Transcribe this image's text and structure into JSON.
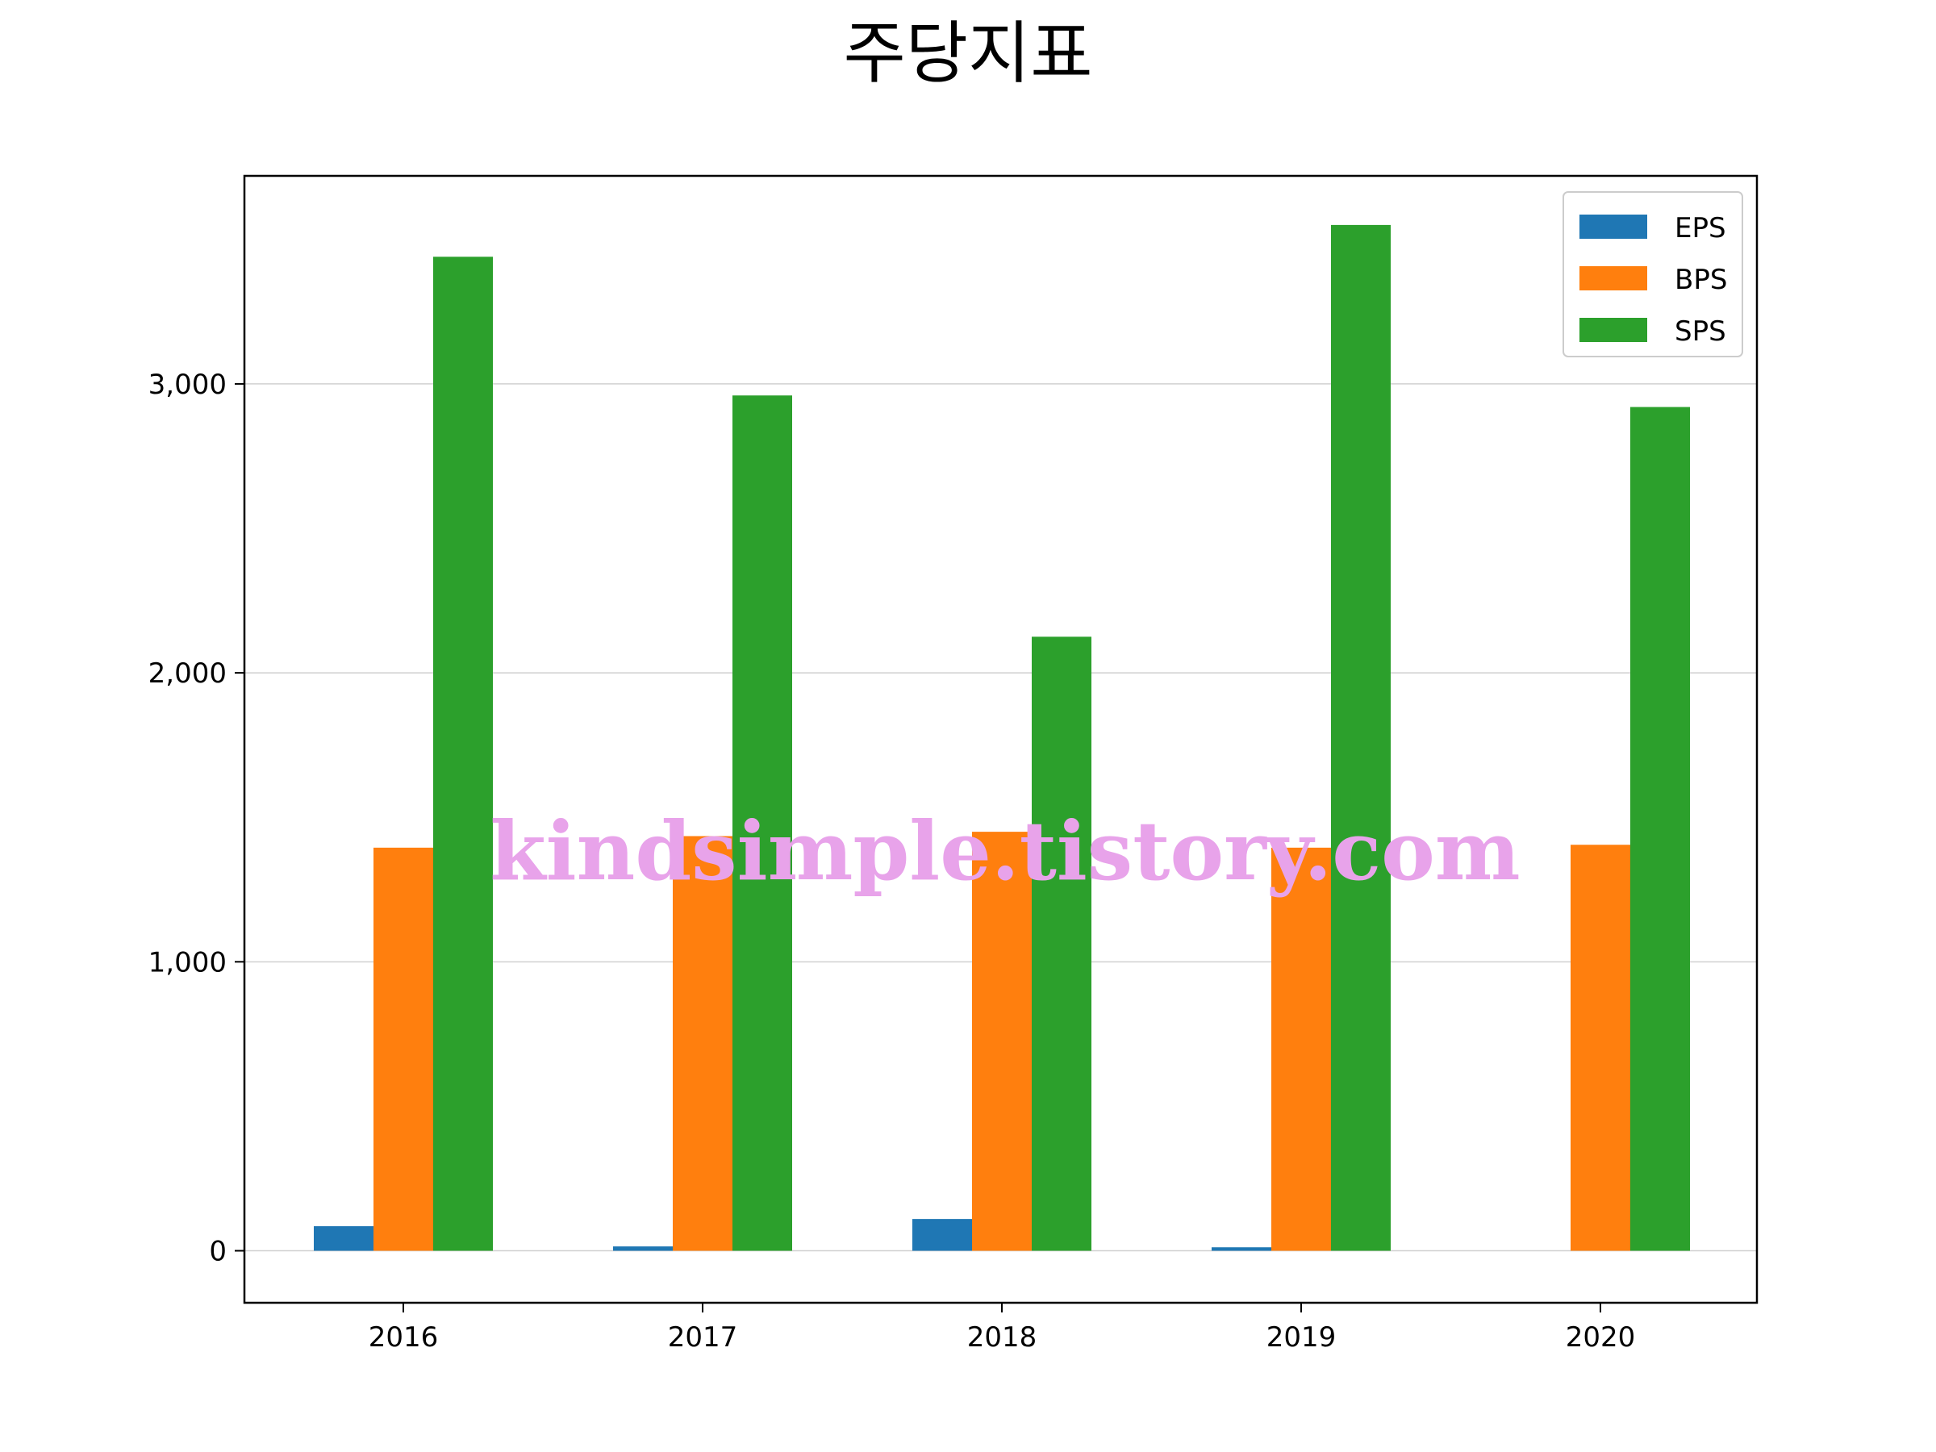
{
  "chart_data": {
    "type": "bar",
    "title": "주당지표",
    "categories": [
      "2016",
      "2017",
      "2018",
      "2019",
      "2020"
    ],
    "series": [
      {
        "name": "EPS",
        "color": "#1f77b4",
        "values": [
          85,
          15,
          110,
          12,
          0
        ]
      },
      {
        "name": "BPS",
        "color": "#ff7f0e",
        "values": [
          1395,
          1435,
          1450,
          1395,
          1405
        ]
      },
      {
        "name": "SPS",
        "color": "#2ca02c",
        "values": [
          3440,
          2960,
          2125,
          3550,
          2920
        ]
      }
    ],
    "ylim": [
      -180,
      3720
    ],
    "yticks": [
      0,
      1000,
      2000,
      3000
    ],
    "ytick_labels": [
      "0",
      "1,000",
      "2,000",
      "3,000"
    ],
    "grid": "y",
    "legend_position": "top-right",
    "watermark": "kindsimple.tistory.com"
  }
}
